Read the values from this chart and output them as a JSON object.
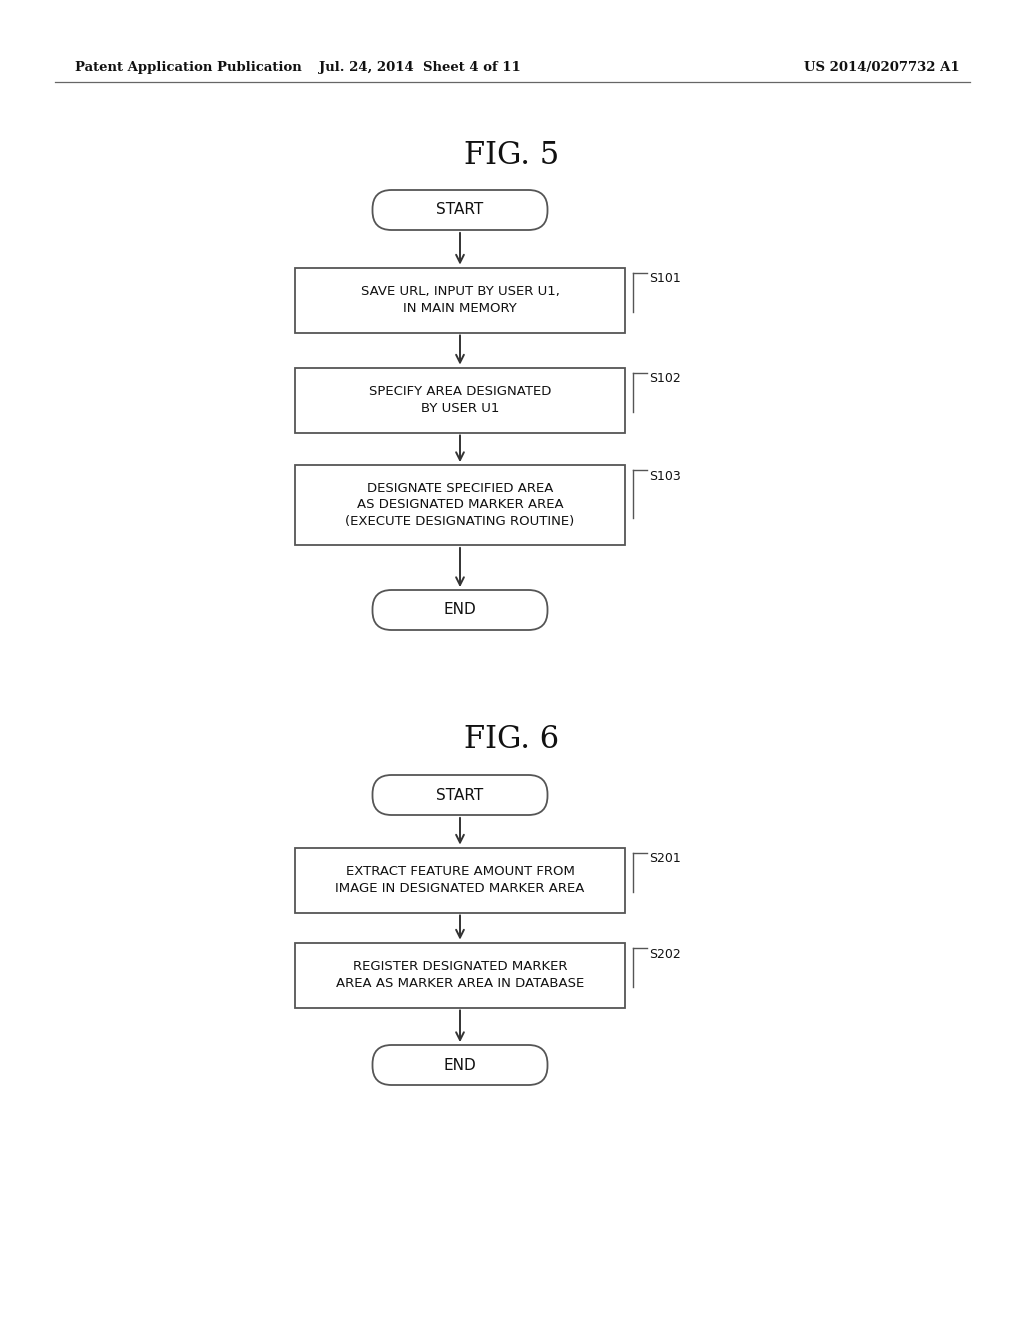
{
  "bg_color": "#ffffff",
  "header_left": "Patent Application Publication",
  "header_mid": "Jul. 24, 2014  Sheet 4 of 11",
  "header_right": "US 2014/0207732 A1",
  "fig5_title": "FIG. 5",
  "fig6_title": "FIG. 6",
  "step_label_color": "#333333",
  "border_color": "#555555",
  "text_color": "#111111",
  "arrow_color": "#333333"
}
